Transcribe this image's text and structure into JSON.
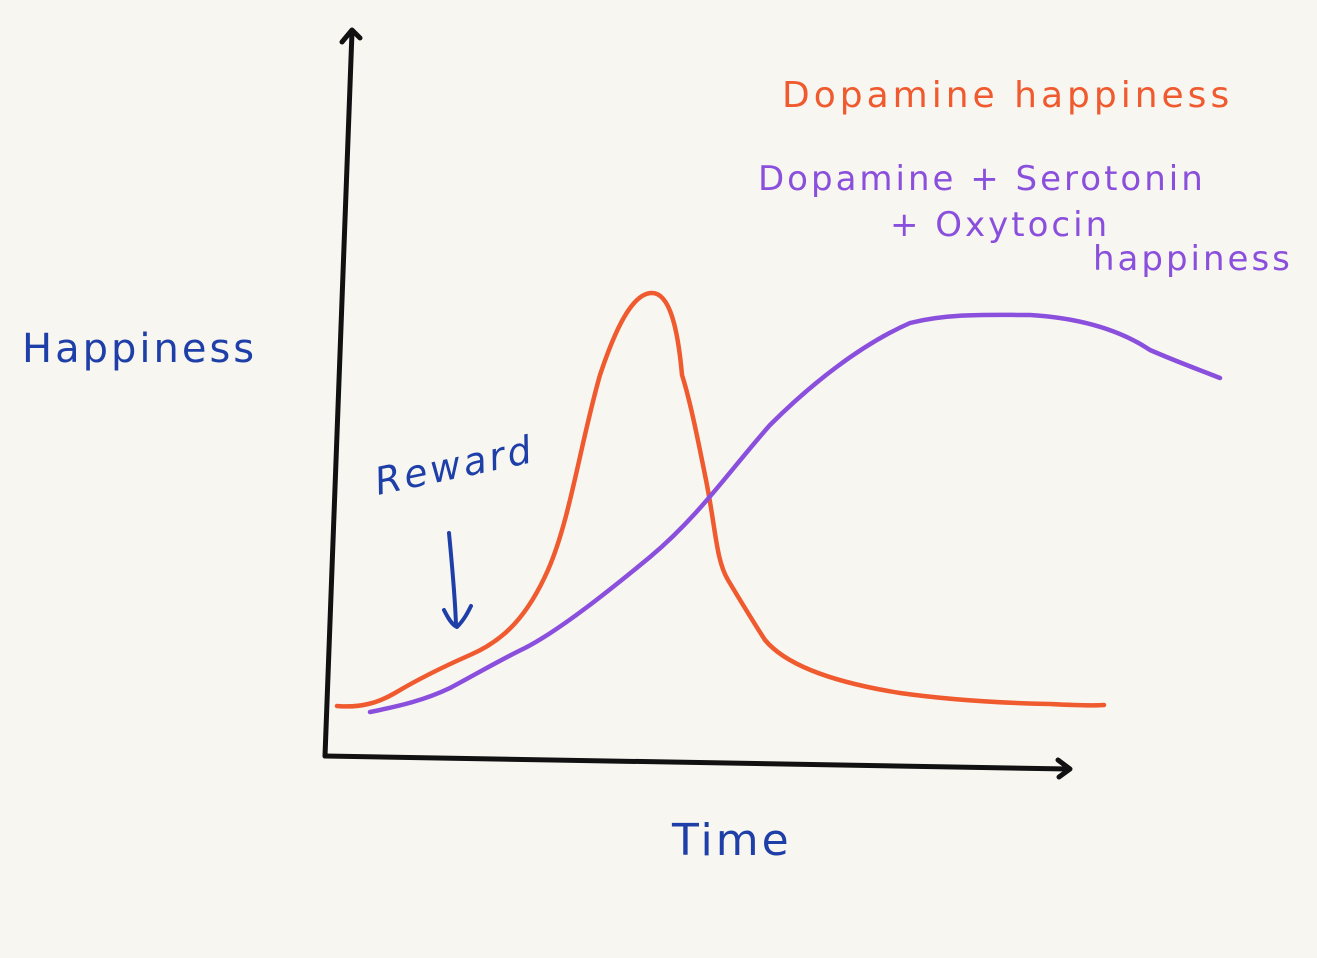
{
  "labels": {
    "y_axis": "Happiness",
    "x_axis": "Time",
    "annotation": "Reward",
    "legend_dopamine": "Dopamine happiness",
    "legend_combined_line1": "Dopamine + Serotonin",
    "legend_combined_line2": "+ Oxytocin",
    "legend_combined_line3": "happiness"
  },
  "colors": {
    "axis": "#111111",
    "label_blue": "#1f3fa8",
    "dopamine": "#ef5a2f",
    "combined": "#8a4fdc",
    "background": "#f8f6f1"
  }
}
